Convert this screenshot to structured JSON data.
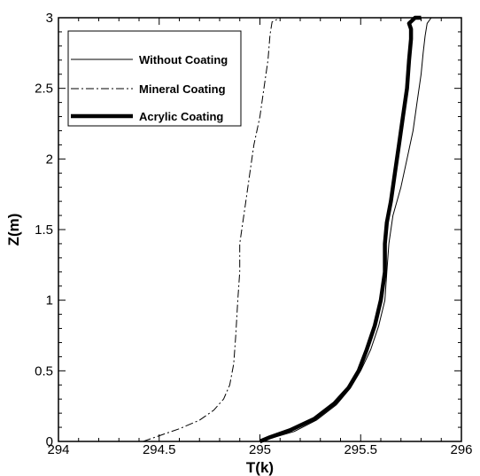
{
  "chart_data": {
    "type": "line",
    "xlabel": "T(k)",
    "ylabel": "Z(m)",
    "xlim": [
      294,
      296
    ],
    "ylim": [
      0,
      3
    ],
    "xticks": [
      294,
      294.5,
      295,
      295.5,
      296
    ],
    "xtick_labels": [
      "294",
      "294.5",
      "295",
      "295.5",
      "296"
    ],
    "yticks": [
      0,
      0.5,
      1,
      1.5,
      2,
      2.5,
      3
    ],
    "ytick_labels": [
      "0",
      "0.5",
      "1",
      "1.5",
      "2",
      "2.5",
      "3"
    ],
    "grid": false,
    "legend_position": "top-left",
    "series": [
      {
        "name": "Without Coating",
        "style": "thin-solid",
        "color": "#000000",
        "points": [
          [
            295.0,
            0.0
          ],
          [
            295.05,
            0.02
          ],
          [
            295.17,
            0.07
          ],
          [
            295.28,
            0.15
          ],
          [
            295.38,
            0.26
          ],
          [
            295.45,
            0.38
          ],
          [
            295.5,
            0.5
          ],
          [
            295.55,
            0.65
          ],
          [
            295.59,
            0.82
          ],
          [
            295.62,
            1.0
          ],
          [
            295.63,
            1.2
          ],
          [
            295.64,
            1.4
          ],
          [
            295.66,
            1.6
          ],
          [
            295.7,
            1.8
          ],
          [
            295.73,
            2.0
          ],
          [
            295.76,
            2.2
          ],
          [
            295.78,
            2.4
          ],
          [
            295.8,
            2.6
          ],
          [
            295.81,
            2.75
          ],
          [
            295.82,
            2.87
          ],
          [
            295.83,
            2.96
          ],
          [
            295.85,
            3.0
          ]
        ]
      },
      {
        "name": "Mineral Coating",
        "style": "dash-dot",
        "color": "#000000",
        "points": [
          [
            294.42,
            0.0
          ],
          [
            294.5,
            0.04
          ],
          [
            294.6,
            0.09
          ],
          [
            294.7,
            0.15
          ],
          [
            294.77,
            0.22
          ],
          [
            294.82,
            0.3
          ],
          [
            294.85,
            0.4
          ],
          [
            294.87,
            0.55
          ],
          [
            294.88,
            0.75
          ],
          [
            294.89,
            1.0
          ],
          [
            294.9,
            1.2
          ],
          [
            294.9,
            1.4
          ],
          [
            294.91,
            1.5
          ],
          [
            294.93,
            1.7
          ],
          [
            294.95,
            1.9
          ],
          [
            294.97,
            2.1
          ],
          [
            295.0,
            2.3
          ],
          [
            295.02,
            2.5
          ],
          [
            295.04,
            2.7
          ],
          [
            295.05,
            2.88
          ],
          [
            295.06,
            2.97
          ],
          [
            295.1,
            3.0
          ]
        ]
      },
      {
        "name": "Acrylic Coating",
        "style": "thick-solid",
        "color": "#000000",
        "points": [
          [
            295.0,
            0.0
          ],
          [
            295.05,
            0.03
          ],
          [
            295.15,
            0.08
          ],
          [
            295.27,
            0.16
          ],
          [
            295.37,
            0.27
          ],
          [
            295.44,
            0.38
          ],
          [
            295.49,
            0.5
          ],
          [
            295.53,
            0.65
          ],
          [
            295.57,
            0.82
          ],
          [
            295.6,
            1.0
          ],
          [
            295.62,
            1.2
          ],
          [
            295.62,
            1.4
          ],
          [
            295.63,
            1.55
          ],
          [
            295.65,
            1.7
          ],
          [
            295.67,
            1.9
          ],
          [
            295.69,
            2.1
          ],
          [
            295.71,
            2.3
          ],
          [
            295.73,
            2.5
          ],
          [
            295.74,
            2.7
          ],
          [
            295.75,
            2.85
          ],
          [
            295.75,
            2.92
          ],
          [
            295.74,
            2.96
          ],
          [
            295.77,
            3.0
          ],
          [
            295.8,
            3.0
          ]
        ]
      }
    ]
  }
}
